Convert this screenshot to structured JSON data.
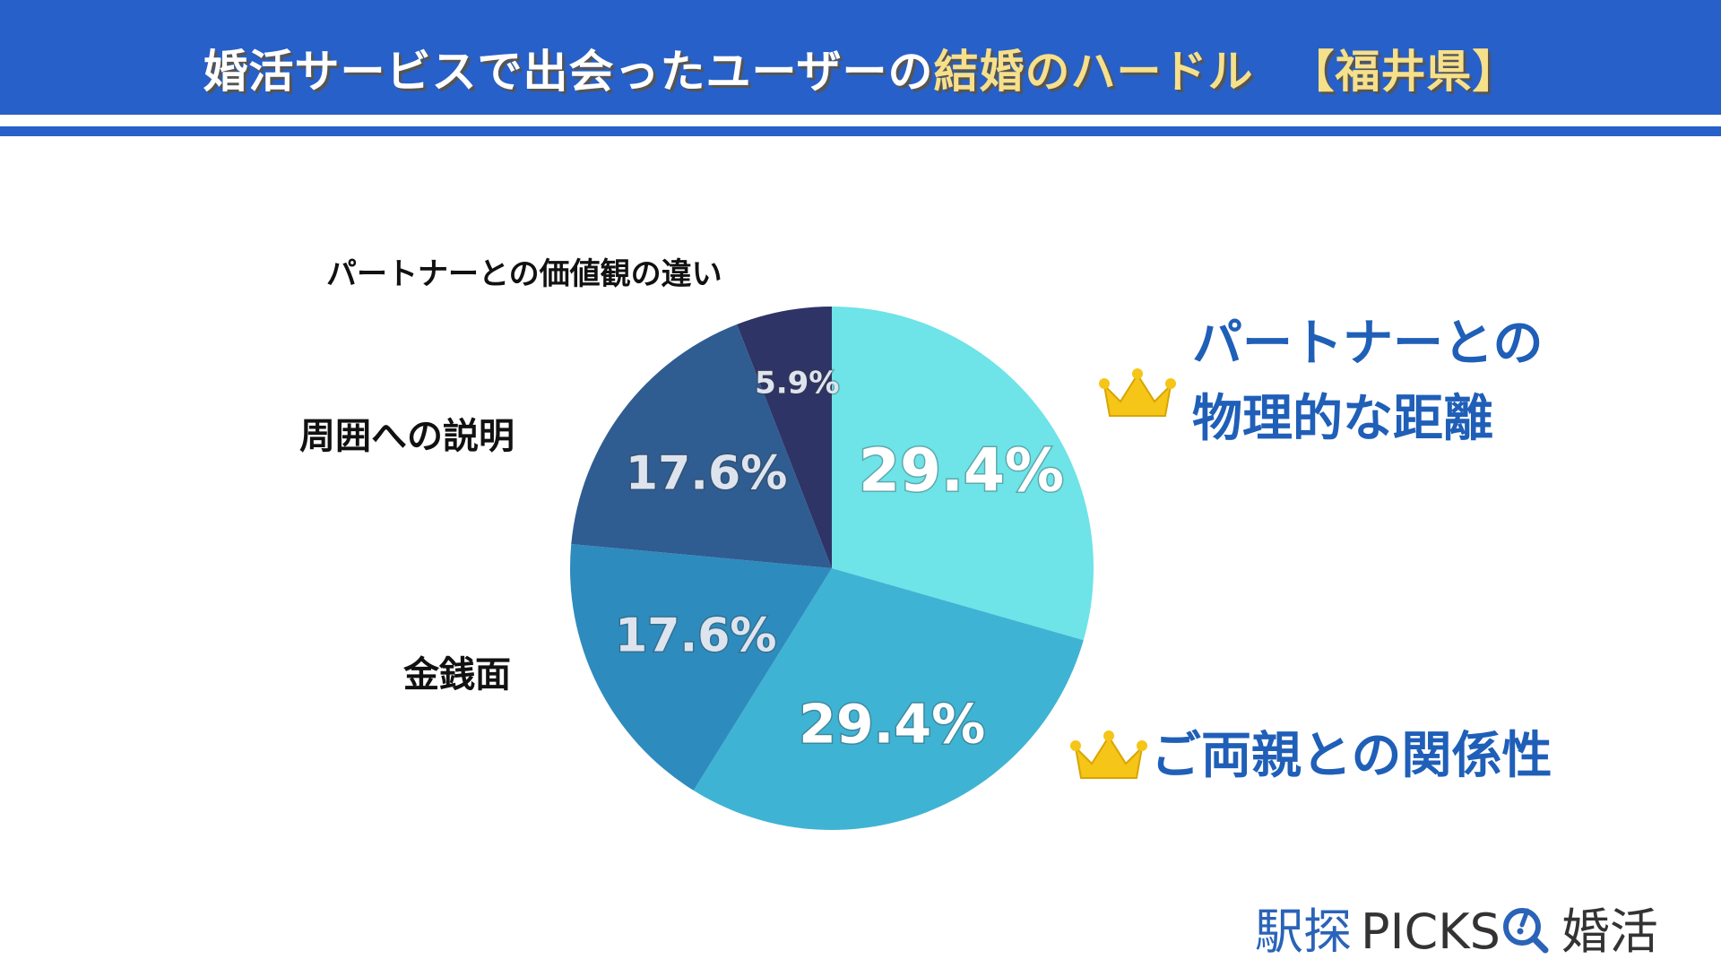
{
  "header": {
    "title_part1": "婚活サービスで出会ったユーザーの",
    "title_highlight": "結婚のハードル",
    "title_part2": "【福井県】",
    "highlight_color": "#f7e08a",
    "bar_color": "#2760c8"
  },
  "chart_data": {
    "type": "pie",
    "start": "top",
    "direction": "clockwise",
    "slices": [
      {
        "label": "パートナーとの物理的な距離",
        "value": 29.4,
        "value_label": "29.4%",
        "color": "#6ee3e8",
        "rank_icon": "crown-icon"
      },
      {
        "label": "ご両親との関係性",
        "value": 29.4,
        "value_label": "29.4%",
        "color": "#3fb3d3",
        "rank_icon": "crown-icon"
      },
      {
        "label": "金銭面",
        "value": 17.6,
        "value_label": "17.6%",
        "color": "#2e8bbd"
      },
      {
        "label": "周囲への説明",
        "value": 17.6,
        "value_label": "17.6%",
        "color": "#2f5d91"
      },
      {
        "label": "パートナーとの価値観の違い",
        "value": 5.9,
        "value_label": "5.9%",
        "color": "#2e3466"
      }
    ]
  },
  "winners": {
    "line1": "パートナーとの",
    "line2": "物理的な距離",
    "second": "ご両親との関係性"
  },
  "logo": {
    "part1": "駅探",
    "part2": "PICKS",
    "part3": "婚活",
    "icon": "magnifier-icon"
  }
}
